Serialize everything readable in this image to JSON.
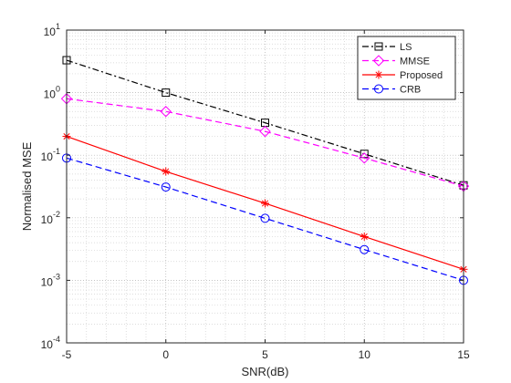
{
  "chart_data": {
    "type": "line",
    "title": "",
    "xlabel": "SNR(dB)",
    "ylabel": "Normalised MSE",
    "xlim": [
      -5,
      15
    ],
    "ylim": [
      0.0001,
      10
    ],
    "yscale": "log",
    "grid": "on (major and minor, dotted)",
    "legend_position": "top-right",
    "x": [
      -5,
      0,
      5,
      10,
      15
    ],
    "x_ticks": [
      "-5",
      "0",
      "5",
      "10",
      "15"
    ],
    "y_ticks": [
      {
        "value": 10,
        "base": "10",
        "exp": "1"
      },
      {
        "value": 1,
        "base": "10",
        "exp": "0"
      },
      {
        "value": 0.1,
        "base": "10",
        "exp": "-1"
      },
      {
        "value": 0.01,
        "base": "10",
        "exp": "-2"
      },
      {
        "value": 0.001,
        "base": "10",
        "exp": "-3"
      },
      {
        "value": 0.0001,
        "base": "10",
        "exp": "-4"
      }
    ],
    "series": [
      {
        "name": "LS",
        "values": [
          3.3,
          1.0,
          0.33,
          0.105,
          0.033
        ],
        "color": "#000000",
        "dash": "dash-dot",
        "marker": "square"
      },
      {
        "name": "MMSE",
        "values": [
          0.8,
          0.5,
          0.24,
          0.09,
          0.032
        ],
        "color": "#ff00ff",
        "dash": "dashed",
        "marker": "diamond"
      },
      {
        "name": "Proposed",
        "values": [
          0.2,
          0.055,
          0.017,
          0.005,
          0.0015
        ],
        "color": "#ff0000",
        "dash": "solid",
        "marker": "asterisk"
      },
      {
        "name": "CRB",
        "values": [
          0.09,
          0.031,
          0.0098,
          0.0031,
          0.001
        ],
        "color": "#0000ff",
        "dash": "dashed",
        "marker": "circle"
      }
    ]
  }
}
